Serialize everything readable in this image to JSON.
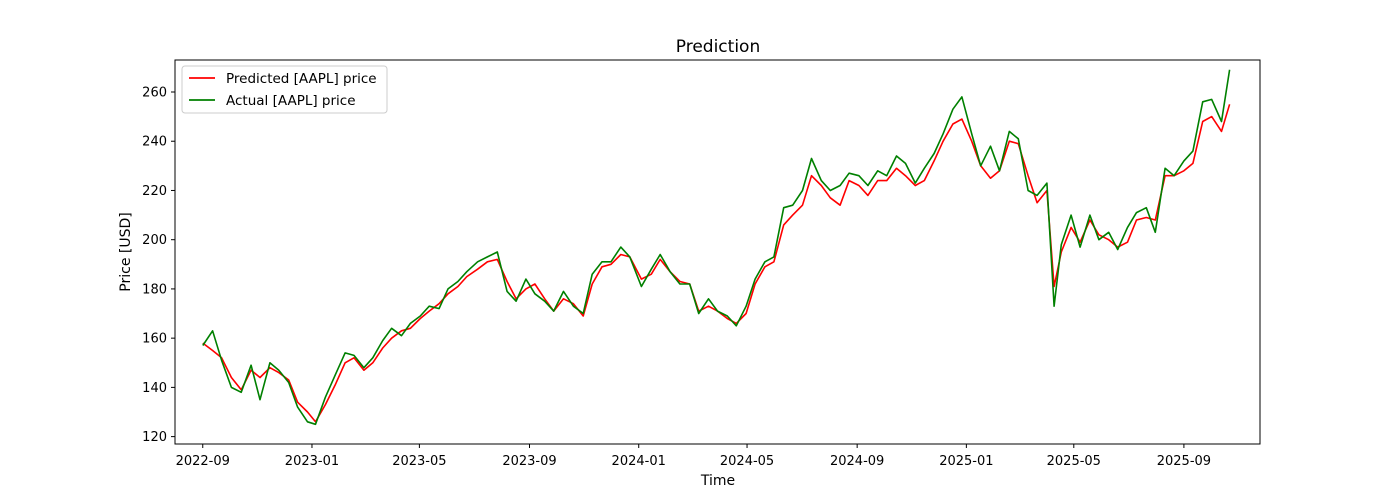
{
  "chart_data": {
    "type": "line",
    "title": "Prediction",
    "xlabel": "Time",
    "ylabel": "Price [USD]",
    "xlim": [
      "2022-08-01",
      "2025-11-25"
    ],
    "ylim": [
      117,
      273
    ],
    "x_ticks": [
      "2022-09",
      "2023-01",
      "2023-05",
      "2023-09",
      "2024-01",
      "2024-05",
      "2024-09",
      "2025-01",
      "2025-05",
      "2025-09"
    ],
    "y_ticks": [
      120,
      140,
      160,
      180,
      200,
      220,
      240,
      260
    ],
    "grid": false,
    "legend_position": "top-left",
    "series": [
      {
        "name": "Predicted [AAPL] price",
        "color": "#ff0000",
        "points": [
          [
            "2022-09-01",
            158
          ],
          [
            "2022-09-12",
            155
          ],
          [
            "2022-09-22",
            152
          ],
          [
            "2022-10-03",
            144
          ],
          [
            "2022-10-14",
            139
          ],
          [
            "2022-10-25",
            147
          ],
          [
            "2022-11-04",
            144
          ],
          [
            "2022-11-15",
            148
          ],
          [
            "2022-11-25",
            146
          ],
          [
            "2022-12-06",
            143
          ],
          [
            "2022-12-16",
            134
          ],
          [
            "2022-12-27",
            130
          ],
          [
            "2023-01-05",
            126
          ],
          [
            "2023-01-16",
            133
          ],
          [
            "2023-01-27",
            141
          ],
          [
            "2023-02-07",
            150
          ],
          [
            "2023-02-17",
            152
          ],
          [
            "2023-02-28",
            147
          ],
          [
            "2023-03-10",
            150
          ],
          [
            "2023-03-21",
            156
          ],
          [
            "2023-03-31",
            160
          ],
          [
            "2023-04-11",
            163
          ],
          [
            "2023-04-21",
            164
          ],
          [
            "2023-05-02",
            168
          ],
          [
            "2023-05-12",
            171
          ],
          [
            "2023-05-23",
            174
          ],
          [
            "2023-06-02",
            178
          ],
          [
            "2023-06-13",
            181
          ],
          [
            "2023-06-23",
            185
          ],
          [
            "2023-07-05",
            188
          ],
          [
            "2023-07-16",
            191
          ],
          [
            "2023-07-27",
            192
          ],
          [
            "2023-08-07",
            183
          ],
          [
            "2023-08-17",
            176
          ],
          [
            "2023-08-28",
            180
          ],
          [
            "2023-09-07",
            182
          ],
          [
            "2023-09-18",
            176
          ],
          [
            "2023-09-28",
            171
          ],
          [
            "2023-10-09",
            176
          ],
          [
            "2023-10-20",
            174
          ],
          [
            "2023-10-31",
            169
          ],
          [
            "2023-11-10",
            182
          ],
          [
            "2023-11-21",
            189
          ],
          [
            "2023-12-01",
            190
          ],
          [
            "2023-12-12",
            194
          ],
          [
            "2023-12-22",
            193
          ],
          [
            "2024-01-04",
            184
          ],
          [
            "2024-01-15",
            186
          ],
          [
            "2024-01-25",
            192
          ],
          [
            "2024-02-05",
            187
          ],
          [
            "2024-02-16",
            183
          ],
          [
            "2024-02-27",
            182
          ],
          [
            "2024-03-08",
            171
          ],
          [
            "2024-03-19",
            173
          ],
          [
            "2024-03-29",
            171
          ],
          [
            "2024-04-09",
            168
          ],
          [
            "2024-04-19",
            166
          ],
          [
            "2024-04-30",
            170
          ],
          [
            "2024-05-10",
            182
          ],
          [
            "2024-05-21",
            189
          ],
          [
            "2024-05-31",
            191
          ],
          [
            "2024-06-11",
            206
          ],
          [
            "2024-06-21",
            210
          ],
          [
            "2024-07-02",
            214
          ],
          [
            "2024-07-12",
            226
          ],
          [
            "2024-07-23",
            222
          ],
          [
            "2024-08-02",
            217
          ],
          [
            "2024-08-13",
            214
          ],
          [
            "2024-08-23",
            224
          ],
          [
            "2024-09-03",
            222
          ],
          [
            "2024-09-13",
            218
          ],
          [
            "2024-09-24",
            224
          ],
          [
            "2024-10-04",
            224
          ],
          [
            "2024-10-15",
            229
          ],
          [
            "2024-10-25",
            226
          ],
          [
            "2024-11-05",
            222
          ],
          [
            "2024-11-15",
            224
          ],
          [
            "2024-11-26",
            232
          ],
          [
            "2024-12-06",
            240
          ],
          [
            "2024-12-17",
            247
          ],
          [
            "2024-12-27",
            249
          ],
          [
            "2025-01-07",
            240
          ],
          [
            "2025-01-17",
            230
          ],
          [
            "2025-01-28",
            225
          ],
          [
            "2025-02-07",
            228
          ],
          [
            "2025-02-18",
            240
          ],
          [
            "2025-02-28",
            239
          ],
          [
            "2025-03-11",
            226
          ],
          [
            "2025-03-21",
            215
          ],
          [
            "2025-04-01",
            220
          ],
          [
            "2025-04-09",
            181
          ],
          [
            "2025-04-17",
            195
          ],
          [
            "2025-04-28",
            205
          ],
          [
            "2025-05-08",
            199
          ],
          [
            "2025-05-19",
            208
          ],
          [
            "2025-05-29",
            202
          ],
          [
            "2025-06-09",
            200
          ],
          [
            "2025-06-19",
            197
          ],
          [
            "2025-06-30",
            199
          ],
          [
            "2025-07-10",
            208
          ],
          [
            "2025-07-21",
            209
          ],
          [
            "2025-07-31",
            208
          ],
          [
            "2025-08-11",
            226
          ],
          [
            "2025-08-21",
            226
          ],
          [
            "2025-09-01",
            228
          ],
          [
            "2025-09-11",
            231
          ],
          [
            "2025-09-22",
            248
          ],
          [
            "2025-10-02",
            250
          ],
          [
            "2025-10-13",
            244
          ],
          [
            "2025-10-22",
            255
          ]
        ]
      },
      {
        "name": "Actual [AAPL] price",
        "color": "#008000",
        "points": [
          [
            "2022-09-01",
            157
          ],
          [
            "2022-09-12",
            163
          ],
          [
            "2022-09-22",
            151
          ],
          [
            "2022-10-03",
            140
          ],
          [
            "2022-10-14",
            138
          ],
          [
            "2022-10-25",
            149
          ],
          [
            "2022-11-04",
            135
          ],
          [
            "2022-11-15",
            150
          ],
          [
            "2022-11-25",
            147
          ],
          [
            "2022-12-06",
            142
          ],
          [
            "2022-12-16",
            132
          ],
          [
            "2022-12-27",
            126
          ],
          [
            "2023-01-05",
            125
          ],
          [
            "2023-01-16",
            136
          ],
          [
            "2023-01-27",
            145
          ],
          [
            "2023-02-07",
            154
          ],
          [
            "2023-02-17",
            153
          ],
          [
            "2023-02-28",
            148
          ],
          [
            "2023-03-10",
            152
          ],
          [
            "2023-03-21",
            159
          ],
          [
            "2023-03-31",
            164
          ],
          [
            "2023-04-11",
            161
          ],
          [
            "2023-04-21",
            166
          ],
          [
            "2023-05-02",
            169
          ],
          [
            "2023-05-12",
            173
          ],
          [
            "2023-05-23",
            172
          ],
          [
            "2023-06-02",
            180
          ],
          [
            "2023-06-13",
            183
          ],
          [
            "2023-06-23",
            187
          ],
          [
            "2023-07-05",
            191
          ],
          [
            "2023-07-16",
            193
          ],
          [
            "2023-07-27",
            195
          ],
          [
            "2023-08-07",
            179
          ],
          [
            "2023-08-17",
            175
          ],
          [
            "2023-08-28",
            184
          ],
          [
            "2023-09-07",
            178
          ],
          [
            "2023-09-18",
            175
          ],
          [
            "2023-09-28",
            171
          ],
          [
            "2023-10-09",
            179
          ],
          [
            "2023-10-20",
            173
          ],
          [
            "2023-10-31",
            170
          ],
          [
            "2023-11-10",
            186
          ],
          [
            "2023-11-21",
            191
          ],
          [
            "2023-12-01",
            191
          ],
          [
            "2023-12-12",
            197
          ],
          [
            "2023-12-22",
            193
          ],
          [
            "2024-01-04",
            181
          ],
          [
            "2024-01-15",
            188
          ],
          [
            "2024-01-25",
            194
          ],
          [
            "2024-02-05",
            187
          ],
          [
            "2024-02-16",
            182
          ],
          [
            "2024-02-27",
            182
          ],
          [
            "2024-03-08",
            170
          ],
          [
            "2024-03-19",
            176
          ],
          [
            "2024-03-29",
            171
          ],
          [
            "2024-04-09",
            169
          ],
          [
            "2024-04-19",
            165
          ],
          [
            "2024-04-30",
            173
          ],
          [
            "2024-05-10",
            184
          ],
          [
            "2024-05-21",
            191
          ],
          [
            "2024-05-31",
            193
          ],
          [
            "2024-06-11",
            213
          ],
          [
            "2024-06-21",
            214
          ],
          [
            "2024-07-02",
            220
          ],
          [
            "2024-07-12",
            233
          ],
          [
            "2024-07-23",
            224
          ],
          [
            "2024-08-02",
            220
          ],
          [
            "2024-08-13",
            222
          ],
          [
            "2024-08-23",
            227
          ],
          [
            "2024-09-03",
            226
          ],
          [
            "2024-09-13",
            222
          ],
          [
            "2024-09-24",
            228
          ],
          [
            "2024-10-04",
            226
          ],
          [
            "2024-10-15",
            234
          ],
          [
            "2024-10-25",
            231
          ],
          [
            "2024-11-05",
            223
          ],
          [
            "2024-11-15",
            229
          ],
          [
            "2024-11-26",
            235
          ],
          [
            "2024-12-06",
            243
          ],
          [
            "2024-12-17",
            253
          ],
          [
            "2024-12-27",
            258
          ],
          [
            "2025-01-07",
            243
          ],
          [
            "2025-01-17",
            230
          ],
          [
            "2025-01-28",
            238
          ],
          [
            "2025-02-07",
            228
          ],
          [
            "2025-02-18",
            244
          ],
          [
            "2025-02-28",
            241
          ],
          [
            "2025-03-11",
            220
          ],
          [
            "2025-03-21",
            218
          ],
          [
            "2025-04-01",
            223
          ],
          [
            "2025-04-09",
            173
          ],
          [
            "2025-04-17",
            198
          ],
          [
            "2025-04-28",
            210
          ],
          [
            "2025-05-08",
            197
          ],
          [
            "2025-05-19",
            210
          ],
          [
            "2025-05-29",
            200
          ],
          [
            "2025-06-09",
            203
          ],
          [
            "2025-06-19",
            196
          ],
          [
            "2025-06-30",
            205
          ],
          [
            "2025-07-10",
            211
          ],
          [
            "2025-07-21",
            213
          ],
          [
            "2025-07-31",
            203
          ],
          [
            "2025-08-11",
            229
          ],
          [
            "2025-08-21",
            226
          ],
          [
            "2025-09-01",
            232
          ],
          [
            "2025-09-11",
            236
          ],
          [
            "2025-09-22",
            256
          ],
          [
            "2025-10-02",
            257
          ],
          [
            "2025-10-13",
            248
          ],
          [
            "2025-10-22",
            269
          ]
        ]
      }
    ]
  }
}
